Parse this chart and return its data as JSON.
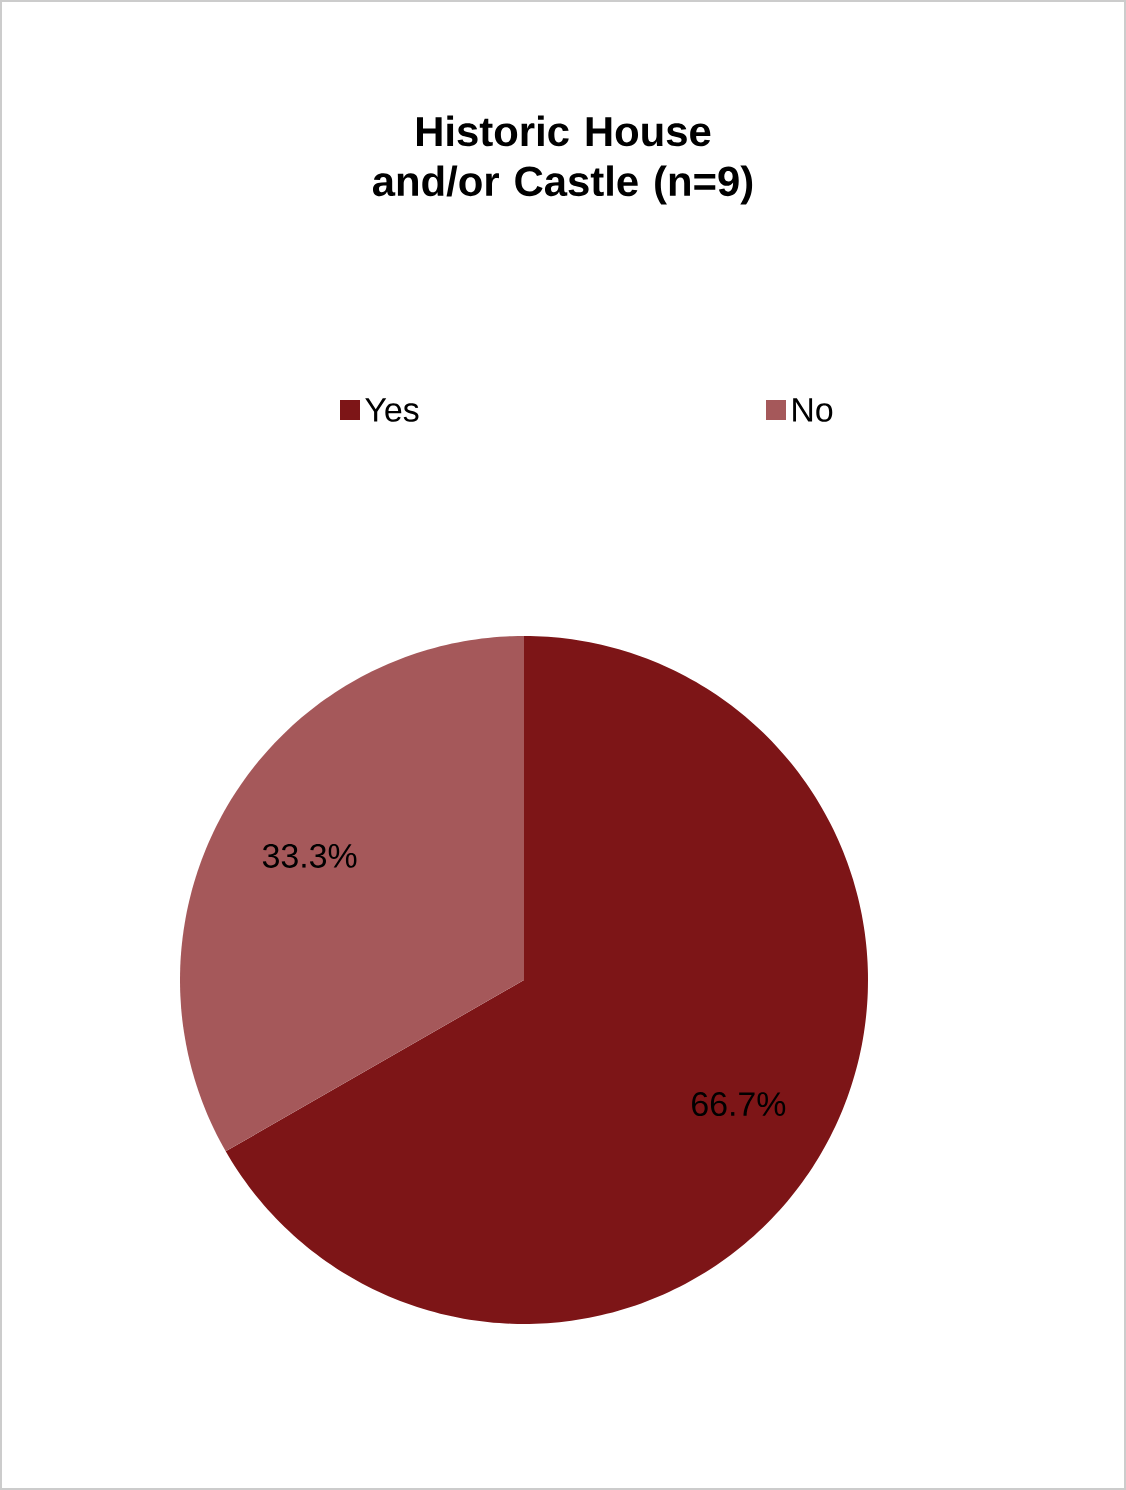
{
  "chart_data": {
    "type": "pie",
    "title": "Historic House and/or Castle (n=9)",
    "categories": [
      "Yes",
      "No"
    ],
    "values": [
      66.7,
      33.3
    ],
    "colors": [
      "#7d1517",
      "#a5585a"
    ],
    "value_labels": [
      "66.7%",
      "33.3%"
    ],
    "legend": "top"
  }
}
